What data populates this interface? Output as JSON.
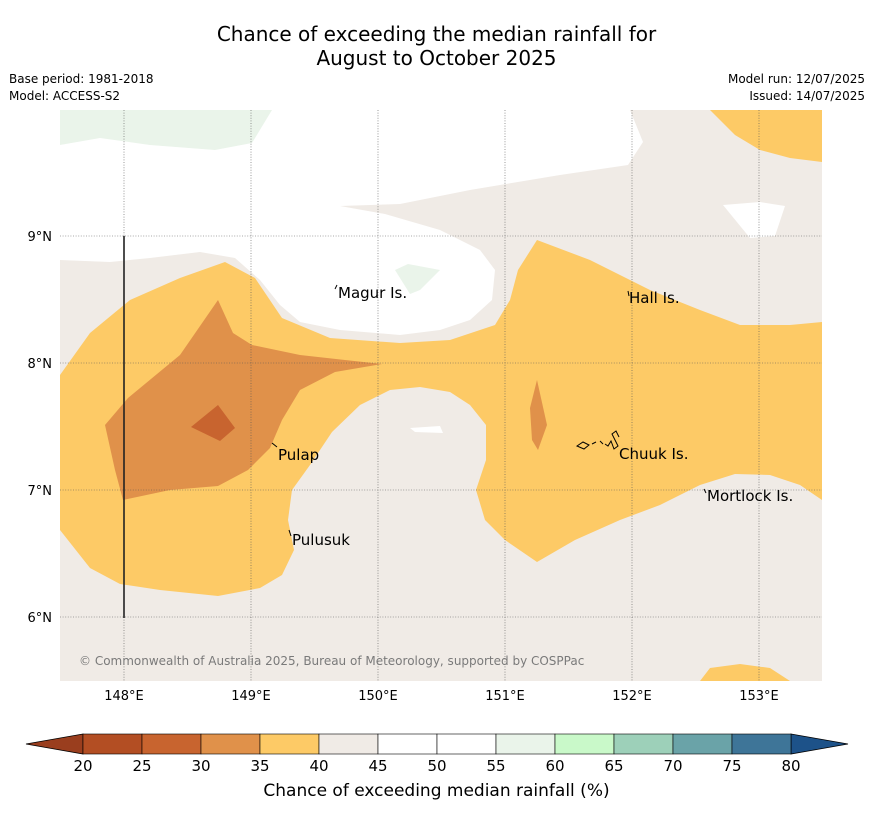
{
  "title_line1": "Chance of exceeding the median rainfall for",
  "title_line2": "August to October 2025",
  "meta": {
    "base_period": "Base period: 1981-2018",
    "model": "Model: ACCESS-S2",
    "model_run": "Model run: 12/07/2025",
    "issued": "Issued: 14/07/2025"
  },
  "map": {
    "lat_ticks": [
      "9°N",
      "8°N",
      "7°N",
      "6°N"
    ],
    "lon_ticks": [
      "148°E",
      "149°E",
      "150°E",
      "151°E",
      "152°E",
      "153°E"
    ],
    "places": [
      "Magur Is.",
      "Hall Is.",
      "Pulap",
      "Chuuk Is.",
      "Mortlock Is.",
      "Pulusuk"
    ],
    "copyright": "© Commonwealth of Australia 2025, Bureau of Meteorology, supported by COSPPac"
  },
  "colorbar": {
    "label": "Chance of exceeding median rainfall (%)",
    "ticks": [
      "20",
      "25",
      "30",
      "35",
      "40",
      "45",
      "50",
      "55",
      "60",
      "65",
      "70",
      "75",
      "80"
    ],
    "colors": [
      "#b34e23",
      "#c8642f",
      "#e0914a",
      "#fdca66",
      "#f0ebe6",
      "#ffffff",
      "#ffffff",
      "#eaf4ea",
      "#c9f9c9",
      "#9dd0b9",
      "#6aa3a8",
      "#3e7598"
    ],
    "under_color": "#9a3e1e",
    "over_color": "#1d5289"
  }
}
